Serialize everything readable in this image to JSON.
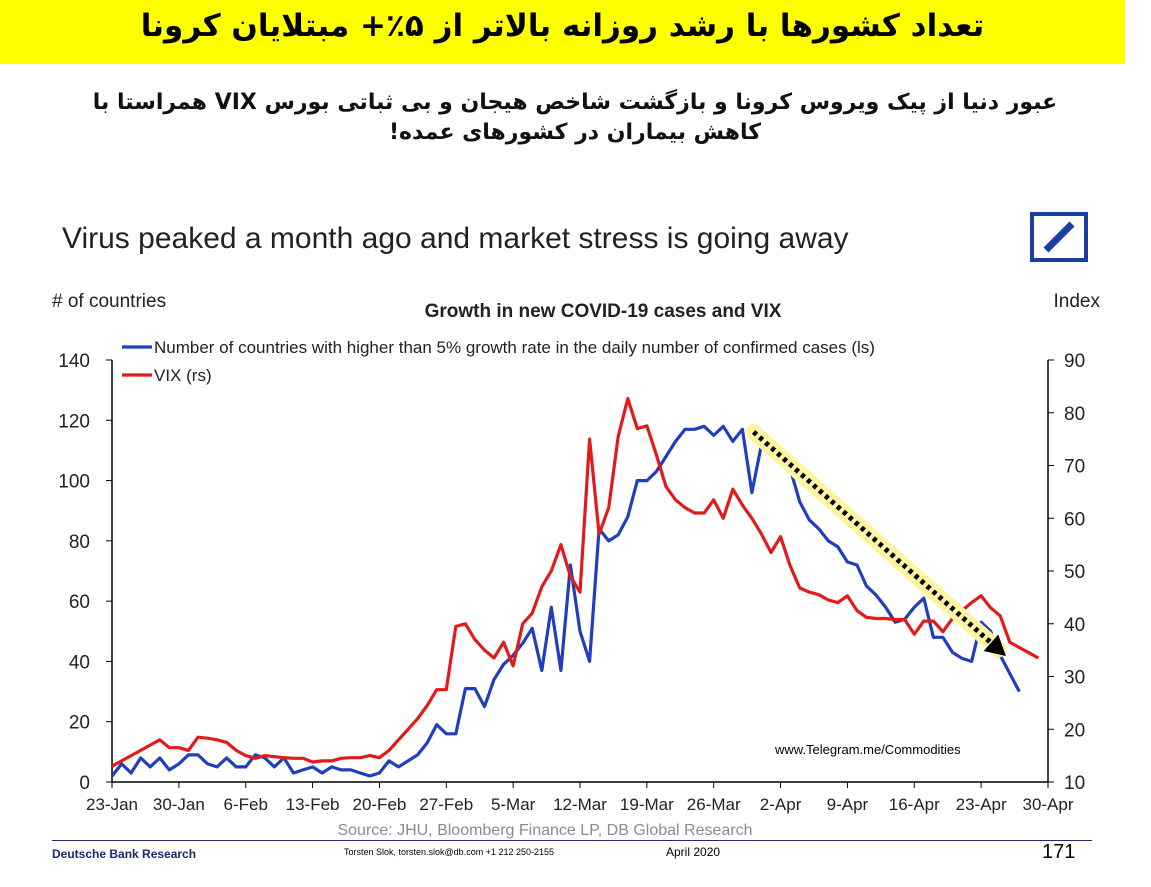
{
  "banner": {
    "title": "تعداد کشورها با رشد روزانه بالاتر از ۵٪+ مبتلایان کرونا",
    "bg_color": "#ffff00"
  },
  "subtitle": {
    "line1": "عبور دنیا از پیک ویروس کرونا و بازگشت شاخص هیجان و بی ثباتی بورس VIX همراستا با",
    "line2": "کاهش بیماران در کشورهای عمده!"
  },
  "headline": "Virus peaked a month ago and market stress is going away",
  "logo": {
    "name": "deutsche-bank-logo",
    "color": "#1a3fa0"
  },
  "chart_data": {
    "type": "line",
    "title": "Growth in new COVID-19 cases and VIX",
    "ylabel_left": "# of countries",
    "ylabel_right": "Index",
    "ylim_left": [
      0,
      140
    ],
    "ylim_right": [
      10,
      90
    ],
    "yticks_left": [
      "0",
      "20",
      "40",
      "60",
      "80",
      "100",
      "120",
      "140"
    ],
    "yticks_right": [
      "10",
      "20",
      "30",
      "40",
      "50",
      "60",
      "70",
      "80",
      "90"
    ],
    "x_start_label": "23-Jan",
    "xticks": [
      "23-Jan",
      "30-Jan",
      "6-Feb",
      "13-Feb",
      "20-Feb",
      "27-Feb",
      "5-Mar",
      "12-Mar",
      "19-Mar",
      "26-Mar",
      "2-Apr",
      "9-Apr",
      "16-Apr",
      "23-Apr",
      "30-Apr"
    ],
    "grid": false,
    "legend_position": "top-left",
    "series": [
      {
        "name": "Number of countries with higher than 5% growth rate in the daily number of confirmed cases (ls)",
        "axis": "left",
        "color": "#1f3fbf",
        "points": [
          [
            0,
            2
          ],
          [
            1,
            6
          ],
          [
            2,
            3
          ],
          [
            3,
            8
          ],
          [
            4,
            5
          ],
          [
            5,
            8
          ],
          [
            6,
            4
          ],
          [
            7,
            6
          ],
          [
            8,
            9
          ],
          [
            9,
            9
          ],
          [
            10,
            6
          ],
          [
            11,
            5
          ],
          [
            12,
            8
          ],
          [
            13,
            5
          ],
          [
            14,
            5
          ],
          [
            15,
            9
          ],
          [
            16,
            8
          ],
          [
            17,
            5
          ],
          [
            18,
            8
          ],
          [
            19,
            3
          ],
          [
            20,
            4
          ],
          [
            21,
            5
          ],
          [
            22,
            3
          ],
          [
            23,
            5
          ],
          [
            24,
            4
          ],
          [
            25,
            4
          ],
          [
            26,
            3
          ],
          [
            27,
            2
          ],
          [
            28,
            3
          ],
          [
            29,
            7
          ],
          [
            30,
            5
          ],
          [
            31,
            7
          ],
          [
            32,
            9
          ],
          [
            33,
            13
          ],
          [
            34,
            19
          ],
          [
            35,
            16
          ],
          [
            36,
            16
          ],
          [
            37,
            31
          ],
          [
            38,
            31
          ],
          [
            39,
            25
          ],
          [
            40,
            34
          ],
          [
            41,
            39
          ],
          [
            42,
            42
          ],
          [
            43,
            46
          ],
          [
            44,
            51
          ],
          [
            45,
            37
          ],
          [
            46,
            58
          ],
          [
            47,
            37
          ],
          [
            48,
            72
          ],
          [
            49,
            50
          ],
          [
            50,
            40
          ],
          [
            51,
            84
          ],
          [
            52,
            80
          ],
          [
            53,
            82
          ],
          [
            54,
            88
          ],
          [
            55,
            100
          ],
          [
            56,
            100
          ],
          [
            57,
            103
          ],
          [
            58,
            108
          ],
          [
            59,
            113
          ],
          [
            60,
            117
          ],
          [
            61,
            117
          ],
          [
            62,
            118
          ],
          [
            63,
            115
          ],
          [
            64,
            118
          ],
          [
            65,
            113
          ],
          [
            66,
            117
          ],
          [
            67,
            96
          ],
          [
            68,
            112
          ],
          [
            69,
            109
          ],
          [
            70,
            110
          ],
          [
            71,
            104
          ],
          [
            72,
            93
          ],
          [
            73,
            87
          ],
          [
            74,
            84
          ],
          [
            75,
            80
          ],
          [
            76,
            78
          ],
          [
            77,
            73
          ],
          [
            78,
            72
          ],
          [
            79,
            65
          ],
          [
            80,
            62
          ],
          [
            81,
            58
          ],
          [
            82,
            53
          ],
          [
            83,
            54
          ],
          [
            84,
            58
          ],
          [
            85,
            61
          ],
          [
            86,
            48
          ],
          [
            87,
            48
          ],
          [
            88,
            43
          ],
          [
            89,
            41
          ],
          [
            90,
            40
          ],
          [
            91,
            53
          ],
          [
            92,
            50
          ],
          [
            93,
            42
          ],
          [
            94,
            36
          ],
          [
            95,
            30
          ]
        ]
      },
      {
        "name": "VIX (rs)",
        "axis": "right",
        "color": "#e31a1a",
        "points": [
          [
            0,
            13
          ],
          [
            1,
            14
          ],
          [
            2,
            15
          ],
          [
            3,
            16
          ],
          [
            4,
            17
          ],
          [
            5,
            18
          ],
          [
            6,
            16.5
          ],
          [
            7,
            16.5
          ],
          [
            8,
            16
          ],
          [
            9,
            18.5
          ],
          [
            10,
            18.3
          ],
          [
            11,
            18
          ],
          [
            12,
            17.5
          ],
          [
            13,
            16
          ],
          [
            14,
            15
          ],
          [
            15,
            14.5
          ],
          [
            16,
            15
          ],
          [
            17,
            14.8
          ],
          [
            18,
            14.6
          ],
          [
            19,
            14.5
          ],
          [
            20,
            14.5
          ],
          [
            21,
            13.8
          ],
          [
            22,
            14
          ],
          [
            23,
            14
          ],
          [
            24,
            14.5
          ],
          [
            25,
            14.6
          ],
          [
            26,
            14.6
          ],
          [
            27,
            15
          ],
          [
            28,
            14.6
          ],
          [
            29,
            16
          ],
          [
            30,
            18
          ],
          [
            31,
            20
          ],
          [
            32,
            22
          ],
          [
            33,
            24.5
          ],
          [
            34,
            27.5
          ],
          [
            35,
            27.5
          ],
          [
            36,
            39.5
          ],
          [
            37,
            40
          ],
          [
            38,
            37
          ],
          [
            39,
            35
          ],
          [
            40,
            33.5
          ],
          [
            41,
            36.5
          ],
          [
            42,
            32
          ],
          [
            43,
            40
          ],
          [
            44,
            42
          ],
          [
            45,
            47
          ],
          [
            46,
            50
          ],
          [
            47,
            55
          ],
          [
            48,
            49
          ],
          [
            49,
            46
          ],
          [
            50,
            75
          ],
          [
            51,
            57
          ],
          [
            52,
            62
          ],
          [
            53,
            75.5
          ],
          [
            54,
            82.7
          ],
          [
            55,
            77
          ],
          [
            56,
            77.5
          ],
          [
            57,
            72
          ],
          [
            58,
            66
          ],
          [
            59,
            63.5
          ],
          [
            60,
            62
          ],
          [
            61,
            61
          ],
          [
            62,
            61
          ],
          [
            63,
            63.5
          ],
          [
            64,
            60
          ],
          [
            65,
            65.5
          ],
          [
            66,
            62.5
          ],
          [
            67,
            60
          ],
          [
            68,
            57
          ],
          [
            69,
            53.5
          ],
          [
            70,
            56.5
          ],
          [
            71,
            51
          ],
          [
            72,
            46.8
          ],
          [
            73,
            46
          ],
          [
            74,
            45.5
          ],
          [
            75,
            44.5
          ],
          [
            76,
            44
          ],
          [
            77,
            45.3
          ],
          [
            78,
            42.5
          ],
          [
            79,
            41.2
          ],
          [
            80,
            41
          ],
          [
            81,
            41
          ],
          [
            82,
            40.8
          ],
          [
            83,
            40.8
          ],
          [
            84,
            38
          ],
          [
            85,
            40.5
          ],
          [
            86,
            40.5
          ],
          [
            87,
            38.5
          ],
          [
            88,
            41
          ],
          [
            89,
            42.5
          ],
          [
            90,
            44
          ],
          [
            91,
            45.3
          ],
          [
            92,
            43
          ],
          [
            93,
            41.5
          ],
          [
            94,
            36.5
          ],
          [
            95,
            35.5
          ],
          [
            96,
            34.5
          ],
          [
            97,
            33.5
          ]
        ]
      }
    ],
    "trend_arrow": {
      "from": [
        90,
        74
      ],
      "to": [
        97,
        41
      ],
      "color_dots": "#000000",
      "color_glow": "#fff5a0"
    },
    "watermark": "www.Telegram.me/Commodities",
    "source": "Source: JHU, Bloomberg Finance LP, DB Global Research"
  },
  "footer": {
    "left": "Deutsche Bank Research",
    "author": "Torsten Slok, torsten.slok@db.com  +1 212 250-2155",
    "date": "April 2020",
    "page": "171"
  }
}
